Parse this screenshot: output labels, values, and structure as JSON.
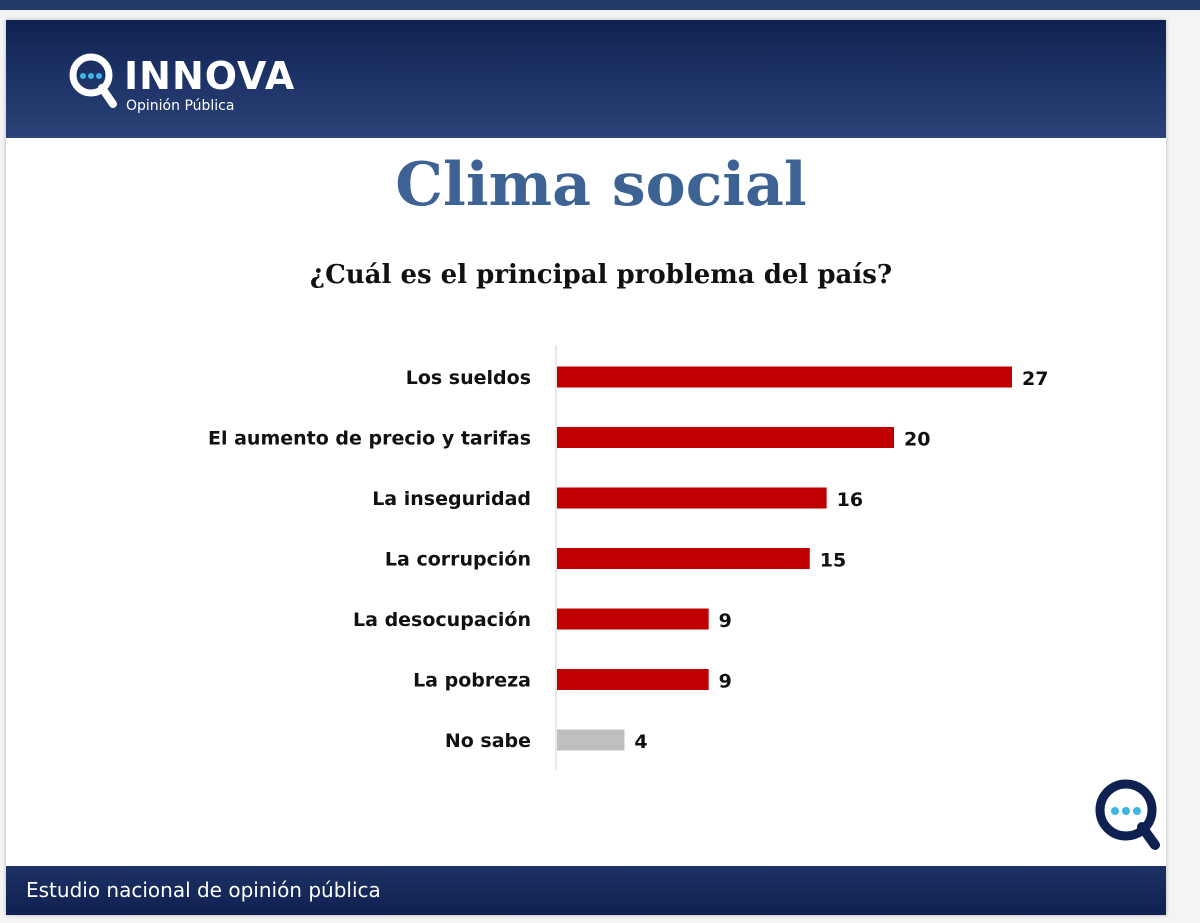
{
  "brand": {
    "name": "INNOVA",
    "sub": "Opinión Pública"
  },
  "title": "Clima social",
  "subtitle": "¿Cuál es el principal problema del país?",
  "footer": "Estudio nacional de opinión pública",
  "colors": {
    "bar": "#c00000",
    "bar_muted": "#bfbfbf",
    "header": "#1c3165",
    "title": "#3d6294"
  },
  "chart_data": {
    "type": "bar",
    "orientation": "horizontal",
    "categories": [
      "Los sueldos",
      "El aumento de precio y tarifas",
      "La inseguridad",
      "La corrupción",
      "La desocupación",
      "La pobreza",
      "No sabe"
    ],
    "values": [
      27,
      20,
      16,
      15,
      9,
      9,
      4
    ],
    "bar_colors": [
      "#c00000",
      "#c00000",
      "#c00000",
      "#c00000",
      "#c00000",
      "#c00000",
      "#bfbfbf"
    ],
    "title": "¿Cuál es el principal problema del país?",
    "xlabel": "",
    "ylabel": "",
    "xlim": [
      0,
      30
    ],
    "grid": false,
    "legend": "none"
  }
}
